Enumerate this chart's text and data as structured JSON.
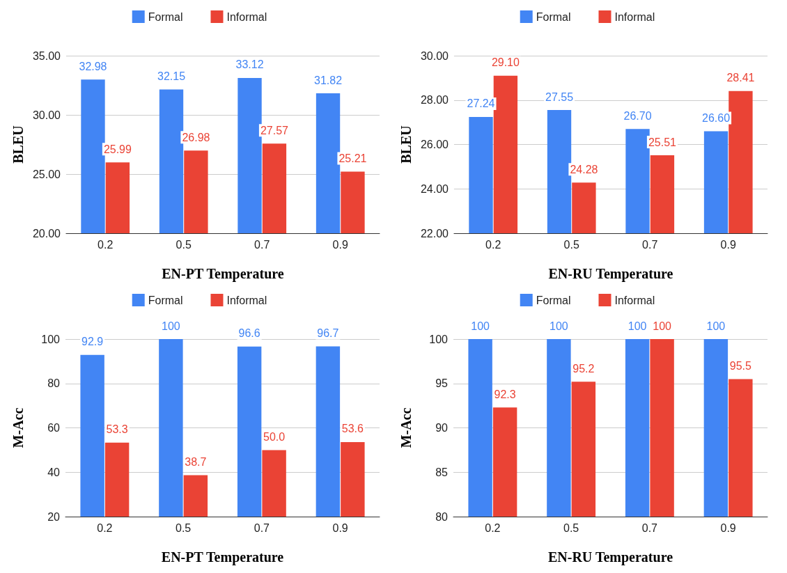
{
  "chart_data": [
    {
      "type": "bar",
      "xlabel": "EN-PT Temperature",
      "ylabel": "BLEU",
      "categories": [
        "0.2",
        "0.5",
        "0.7",
        "0.9"
      ],
      "ylim": [
        20,
        35
      ],
      "yticks": [
        {
          "value": 20,
          "label": "20.00"
        },
        {
          "value": 25,
          "label": "25.00"
        },
        {
          "value": 30,
          "label": "30.00"
        },
        {
          "value": 35,
          "label": "35.00"
        }
      ],
      "grid": "y",
      "legend": "top",
      "series": [
        {
          "name": "Formal",
          "color": "#4285f4",
          "values": [
            32.98,
            32.15,
            33.12,
            31.82
          ],
          "value_labels": [
            "32.98",
            "32.15",
            "33.12",
            "31.82"
          ]
        },
        {
          "name": "Informal",
          "color": "#ea4335",
          "values": [
            25.99,
            26.98,
            27.57,
            25.21
          ],
          "value_labels": [
            "25.99",
            "26.98",
            "27.57",
            "25.21"
          ]
        }
      ]
    },
    {
      "type": "bar",
      "xlabel": "EN-RU Temperature",
      "ylabel": "BLEU",
      "categories": [
        "0.2",
        "0.5",
        "0.7",
        "0.9"
      ],
      "ylim": [
        22,
        30
      ],
      "yticks": [
        {
          "value": 22,
          "label": "22.00"
        },
        {
          "value": 24,
          "label": "24.00"
        },
        {
          "value": 26,
          "label": "26.00"
        },
        {
          "value": 28,
          "label": "28.00"
        },
        {
          "value": 30,
          "label": "30.00"
        }
      ],
      "grid": "y",
      "legend": "top",
      "series": [
        {
          "name": "Formal",
          "color": "#4285f4",
          "values": [
            27.24,
            27.55,
            26.7,
            26.6
          ],
          "value_labels": [
            "27.24",
            "27.55",
            "26.70",
            "26.60"
          ]
        },
        {
          "name": "Informal",
          "color": "#ea4335",
          "values": [
            29.1,
            24.28,
            25.51,
            28.41
          ],
          "value_labels": [
            "29.10",
            "24.28",
            "25.51",
            "28.41"
          ]
        }
      ]
    },
    {
      "type": "bar",
      "xlabel": "EN-PT Temperature",
      "ylabel": "M-Acc",
      "categories": [
        "0.2",
        "0.5",
        "0.7",
        "0.9"
      ],
      "ylim": [
        20,
        100
      ],
      "yticks": [
        20,
        40,
        60,
        80,
        100
      ],
      "grid": "y",
      "legend": "top",
      "series": [
        {
          "name": "Formal",
          "color": "#4285f4",
          "values": [
            92.9,
            100,
            96.6,
            96.7
          ],
          "value_labels": [
            "92.9",
            "100",
            "96.6",
            "96.7"
          ]
        },
        {
          "name": "Informal",
          "color": "#ea4335",
          "values": [
            53.3,
            38.7,
            50,
            53.6
          ],
          "value_labels": [
            "53.3",
            "38.7",
            "50.0",
            "53.6"
          ]
        }
      ]
    },
    {
      "type": "bar",
      "xlabel": "EN-RU Temperature",
      "ylabel": "M-Acc",
      "categories": [
        "0.2",
        "0.5",
        "0.7",
        "0.9"
      ],
      "ylim": [
        80,
        100
      ],
      "yticks": [
        80,
        85,
        90,
        95,
        100
      ],
      "grid": "y",
      "legend": "top",
      "series": [
        {
          "name": "Formal",
          "color": "#4285f4",
          "values": [
            100,
            100,
            100,
            100
          ],
          "value_labels": [
            "100",
            "100",
            "100",
            "100"
          ]
        },
        {
          "name": "Informal",
          "color": "#ea4335",
          "values": [
            92.3,
            95.2,
            100,
            95.5
          ],
          "value_labels": [
            "92.3",
            "95.2",
            "100",
            "95.5"
          ]
        }
      ]
    }
  ]
}
